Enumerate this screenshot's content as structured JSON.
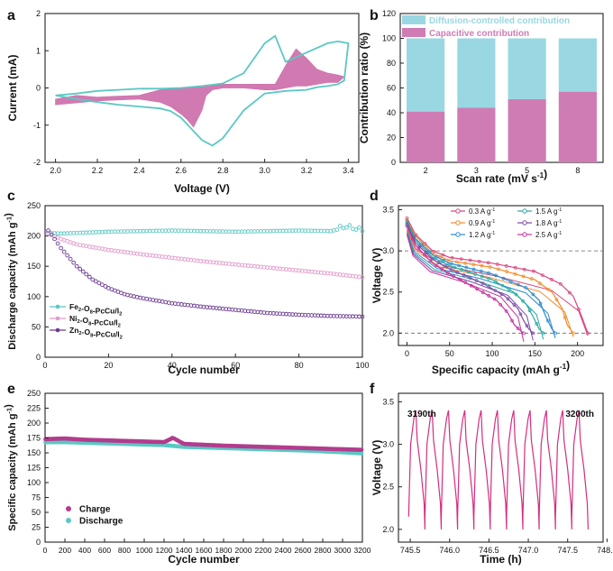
{
  "colors": {
    "cv_line": "#5bc8c4",
    "cv_fill": "#cf73ad",
    "diffusion": "#99d8e2",
    "capacitive": "#d07cb4",
    "fe": "#5bc8c4",
    "ni": "#e39acb",
    "zn": "#6b3a92",
    "charge": "#b23c8d",
    "discharge": "#5bc8c4",
    "rate_03": "#d8457f",
    "rate_09": "#f28a28",
    "rate_12": "#2a8ad0",
    "rate_15": "#2aa7a0",
    "rate_18": "#7b4aa5",
    "rate_25": "#c2349b",
    "gcd": "#d62d7e"
  },
  "chart_data": [
    {
      "panel": "a",
      "type": "line",
      "xlabel": "Voltage (V)",
      "ylabel": "Current (mA)",
      "xlim": [
        1.95,
        3.45
      ],
      "ylim": [
        -2,
        2
      ],
      "xticks": [
        "2.0",
        "2.2",
        "2.4",
        "2.6",
        "2.8",
        "3.0",
        "3.2",
        "3.4"
      ],
      "yticks": [
        "-2",
        "-1",
        "0",
        "1",
        "2"
      ],
      "series": [
        {
          "role": "total",
          "x": [
            2.0,
            2.1,
            2.2,
            2.3,
            2.4,
            2.5,
            2.55,
            2.6,
            2.65,
            2.7,
            2.75,
            2.8,
            2.9,
            3.0,
            3.1,
            3.2,
            3.25,
            3.3,
            3.35,
            3.38,
            3.4,
            3.35,
            3.3,
            3.2,
            3.1,
            3.05,
            3.0,
            2.95,
            2.9,
            2.8,
            2.7,
            2.6,
            2.5,
            2.4,
            2.3,
            2.2,
            2.1,
            2.0
          ],
          "y": [
            -0.2,
            -0.3,
            -0.38,
            -0.45,
            -0.5,
            -0.55,
            -0.62,
            -0.8,
            -1.1,
            -1.4,
            -1.55,
            -1.35,
            -0.6,
            -0.15,
            -0.08,
            -0.05,
            0.02,
            0.05,
            0.1,
            0.2,
            1.2,
            1.25,
            1.2,
            0.95,
            0.7,
            1.4,
            1.2,
            0.8,
            0.4,
            0.12,
            0.05,
            0.0,
            -0.02,
            -0.02,
            -0.05,
            -0.08,
            -0.15,
            -0.2
          ]
        },
        {
          "role": "capacitive",
          "x": [
            2.0,
            2.1,
            2.2,
            2.3,
            2.4,
            2.5,
            2.55,
            2.6,
            2.63,
            2.66,
            2.7,
            2.72,
            2.75,
            2.8,
            2.9,
            3.0,
            3.05,
            3.1,
            3.15,
            3.2,
            3.25,
            3.3,
            3.35,
            3.38,
            3.35,
            3.3,
            3.25,
            3.2,
            3.15,
            3.1,
            3.05,
            3.0,
            2.9,
            2.8,
            2.7,
            2.6,
            2.5,
            2.4,
            2.3,
            2.2,
            2.1,
            2.0
          ],
          "y": [
            -0.45,
            -0.4,
            -0.35,
            -0.32,
            -0.3,
            -0.38,
            -0.5,
            -0.7,
            -0.85,
            -1.05,
            -0.6,
            -0.2,
            -0.05,
            0.0,
            0.0,
            -0.05,
            -0.05,
            0.0,
            0.05,
            0.05,
            0.1,
            0.15,
            0.15,
            0.3,
            0.35,
            0.4,
            0.5,
            0.8,
            1.05,
            0.6,
            0.1,
            0.1,
            0.1,
            0.1,
            0.05,
            0.0,
            -0.05,
            -0.2,
            -0.22,
            -0.25,
            -0.2,
            -0.3
          ]
        }
      ]
    },
    {
      "panel": "b",
      "type": "bar",
      "xlabel": "Scan rate (mV s-1)",
      "ylabel": "Contribution ratio (%)",
      "ylim": [
        0,
        120
      ],
      "yticks": [
        "0",
        "20",
        "40",
        "60",
        "80",
        "100",
        "120"
      ],
      "categories": [
        "2",
        "3",
        "5",
        "8"
      ],
      "legend_position": "top",
      "series": [
        {
          "name": "Capacitive contribution",
          "values": [
            41,
            44,
            51,
            57
          ]
        },
        {
          "name": "Diffusion-controlled contribution",
          "values": [
            59,
            56,
            49,
            43
          ]
        }
      ]
    },
    {
      "panel": "c",
      "type": "scatter",
      "xlabel": "Cycle number",
      "ylabel": "Discharge capacity (mAh g-1)",
      "xlim": [
        0,
        100
      ],
      "ylim": [
        0,
        250
      ],
      "xticks": [
        "0",
        "20",
        "40",
        "60",
        "80",
        "100"
      ],
      "yticks": [
        "0",
        "50",
        "100",
        "150",
        "200",
        "250"
      ],
      "legend_position": "bottom-left",
      "series": [
        {
          "name": "Fe2-O8-PcCu/I2",
          "x": [
            1,
            5,
            10,
            20,
            30,
            40,
            50,
            60,
            70,
            80,
            90,
            95,
            100
          ],
          "y": [
            205,
            204,
            205,
            207,
            208,
            209,
            208,
            207,
            208,
            209,
            208,
            214,
            208
          ]
        },
        {
          "name": "Ni2-O8-PcCu/I2",
          "x": [
            1,
            5,
            10,
            20,
            30,
            40,
            50,
            60,
            70,
            80,
            90,
            100
          ],
          "y": [
            205,
            195,
            186,
            177,
            170,
            164,
            158,
            153,
            148,
            143,
            138,
            132
          ]
        },
        {
          "name": "Zn2-O8-PcCu/I2",
          "x": [
            1,
            3,
            5,
            10,
            15,
            20,
            25,
            30,
            40,
            50,
            60,
            70,
            80,
            90,
            100
          ],
          "y": [
            209,
            195,
            180,
            150,
            128,
            114,
            104,
            98,
            89,
            83,
            78,
            73,
            70,
            68,
            67
          ]
        }
      ]
    },
    {
      "panel": "d",
      "type": "line",
      "xlabel": "Specific capacity (mAh g-1)",
      "ylabel": "Voltage (V)",
      "xlim": [
        -10,
        230
      ],
      "ylim": [
        1.85,
        3.55
      ],
      "xticks": [
        "0",
        "50",
        "100",
        "150",
        "200"
      ],
      "yticks": [
        "2.0",
        "2.5",
        "3.0",
        "3.5"
      ],
      "legend_position": "top",
      "series": [
        {
          "name": "0.3 A g-1",
          "x": [
            0,
            10,
            30,
            50,
            100,
            150,
            180,
            195,
            205,
            212
          ],
          "y": [
            3.4,
            3.2,
            3.0,
            2.92,
            2.85,
            2.75,
            2.6,
            2.45,
            2.2,
            2.0
          ]
        },
        {
          "name": "0.9 A g-1",
          "x": [
            0,
            10,
            30,
            50,
            100,
            150,
            170,
            182,
            188,
            195
          ],
          "y": [
            3.38,
            3.18,
            2.97,
            2.88,
            2.8,
            2.65,
            2.5,
            2.3,
            2.1,
            2.0
          ]
        },
        {
          "name": "1.2 A g-1",
          "x": [
            0,
            10,
            30,
            50,
            100,
            140,
            155,
            163,
            170,
            174
          ],
          "y": [
            3.36,
            3.15,
            2.95,
            2.85,
            2.72,
            2.55,
            2.4,
            2.2,
            2.05,
            2.0
          ]
        },
        {
          "name": "1.5 A g-1",
          "x": [
            0,
            10,
            30,
            50,
            100,
            125,
            140,
            148,
            155,
            160
          ],
          "y": [
            3.34,
            3.13,
            2.92,
            2.82,
            2.65,
            2.5,
            2.35,
            2.2,
            2.05,
            2.0
          ]
        },
        {
          "name": "1.8 A g-1",
          "x": [
            0,
            10,
            30,
            50,
            90,
            115,
            130,
            137,
            143,
            148
          ],
          "y": [
            3.32,
            3.1,
            2.9,
            2.78,
            2.6,
            2.45,
            2.3,
            2.15,
            2.05,
            2.0
          ]
        },
        {
          "name": "2.5 A g-1",
          "x": [
            0,
            10,
            30,
            50,
            80,
            105,
            118,
            126,
            133,
            137
          ],
          "y": [
            3.3,
            3.07,
            2.85,
            2.72,
            2.55,
            2.4,
            2.25,
            2.1,
            2.03,
            2.0
          ]
        }
      ],
      "reference_lines_y": [
        3.0,
        2.0
      ]
    },
    {
      "panel": "e",
      "type": "scatter",
      "xlabel": "Cycle number",
      "ylabel": "Specific capacity (mAh g-1)",
      "xlim": [
        0,
        3200
      ],
      "ylim": [
        0,
        250
      ],
      "xticks": [
        "0",
        "200",
        "400",
        "600",
        "800",
        "1000",
        "1200",
        "1400",
        "1600",
        "1800",
        "2000",
        "2200",
        "2400",
        "2600",
        "2800",
        "3000",
        "3200"
      ],
      "yticks": [
        "0",
        "25",
        "50",
        "75",
        "100",
        "125",
        "150",
        "175",
        "200",
        "225",
        "250"
      ],
      "legend_position": "bottom-left",
      "series": [
        {
          "name": "Charge",
          "x": [
            0,
            200,
            400,
            800,
            1200,
            1290,
            1400,
            1800,
            2200,
            2600,
            3000,
            3200
          ],
          "y": [
            173,
            174,
            172,
            170,
            168,
            175,
            165,
            162,
            160,
            158,
            156,
            155
          ]
        },
        {
          "name": "Discharge",
          "x": [
            0,
            200,
            400,
            800,
            1200,
            1400,
            1800,
            2200,
            2600,
            3000,
            3200
          ],
          "y": [
            168,
            168,
            167,
            165,
            163,
            160,
            158,
            156,
            154,
            151,
            149
          ]
        }
      ]
    },
    {
      "panel": "f",
      "type": "line",
      "xlabel": "Time (h)",
      "ylabel": "Voltage (V)",
      "xlim": [
        745.35,
        747.95
      ],
      "ylim": [
        1.85,
        3.6
      ],
      "xticks": [
        "745.5",
        "746.0",
        "746.5",
        "747.0",
        "747.5",
        "748.0"
      ],
      "yticks": [
        "2.0",
        "2.5",
        "3.0",
        "3.5"
      ],
      "cycles": 11,
      "t_start": 745.48,
      "t_end": 747.76,
      "v_max": 3.4,
      "v_min": 2.0,
      "annotations": [
        "3190th",
        "3200th"
      ]
    }
  ],
  "labels": {
    "a": "a",
    "b": "b",
    "c": "c",
    "d": "d",
    "e": "e",
    "f": "f"
  }
}
